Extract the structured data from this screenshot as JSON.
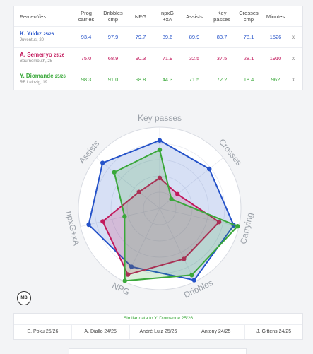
{
  "table": {
    "percentiles_label": "Percentiles",
    "columns": [
      {
        "l1": "Prog",
        "l2": "carries"
      },
      {
        "l1": "Dribbles",
        "l2": "cmp"
      },
      {
        "l1": "NPG",
        "l2": ""
      },
      {
        "l1": "npxG",
        "l2": "+xA"
      },
      {
        "l1": "Assists",
        "l2": ""
      },
      {
        "l1": "Key",
        "l2": "passes"
      },
      {
        "l1": "Crosses",
        "l2": "cmp"
      },
      {
        "l1": "Minutes",
        "l2": ""
      }
    ],
    "players": [
      {
        "name": "K. Yıldız",
        "season": "25/26",
        "club": "Juventus, 20",
        "color": "#2452c9",
        "values": [
          "93.4",
          "97.9",
          "79.7",
          "89.6",
          "89.9",
          "83.7",
          "78.1",
          "1526"
        ],
        "remove": "x"
      },
      {
        "name": "A. Semenyo",
        "season": "25/26",
        "club": "Bournemouth, 25",
        "color": "#c2185b",
        "values": [
          "75.0",
          "68.9",
          "90.3",
          "71.9",
          "32.5",
          "37.5",
          "28.1",
          "1910"
        ],
        "remove": "x"
      },
      {
        "name": "Y. Diomande",
        "season": "25/26",
        "club": "RB Leipzig, 19",
        "color": "#3aa83a",
        "values": [
          "98.3",
          "91.0",
          "98.8",
          "44.3",
          "71.5",
          "72.2",
          "18.4",
          "962"
        ],
        "remove": "x"
      }
    ]
  },
  "chart_data": {
    "type": "radar",
    "axes": [
      "Key passes",
      "Crosses",
      "Carrying",
      "Dribbles",
      "NPG",
      "npxG+xA",
      "Assists"
    ],
    "rmax": 100,
    "series": [
      {
        "name": "K. Yıldız",
        "color": "#2452c9",
        "values": [
          83.7,
          78.1,
          93.4,
          97.9,
          79.7,
          89.6,
          89.9
        ]
      },
      {
        "name": "A. Semenyo",
        "color": "#c2185b",
        "values": [
          37.5,
          28.1,
          75.0,
          68.9,
          90.3,
          71.9,
          32.5
        ]
      },
      {
        "name": "Y. Diomande",
        "color": "#3aa83a",
        "values": [
          72.2,
          18.4,
          98.3,
          91.0,
          98.8,
          44.3,
          71.5
        ]
      }
    ]
  },
  "logo": {
    "text": "MB"
  },
  "similar": {
    "title": "Similar data to Y. Diomande 25/26",
    "items": [
      "E. Poku 25/26",
      "A. Diallo 24/25",
      "André Luiz 25/26",
      "Antony 24/25",
      "J. Gittens 24/25"
    ]
  }
}
